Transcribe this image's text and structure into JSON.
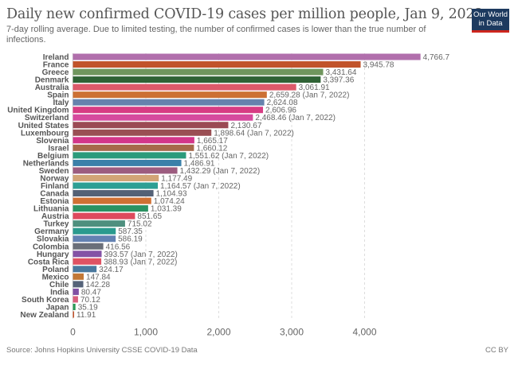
{
  "title": "Daily new confirmed COVID-19 cases per million people, Jan 9, 2022",
  "subtitle": "7-day rolling average. Due to limited testing, the number of confirmed cases is lower than the true number of infections.",
  "logo": {
    "line1": "Our World",
    "line2": "in Data"
  },
  "source": "Source: Johns Hopkins University CSSE COVID-19 Data",
  "license": "CC BY",
  "chart_data": {
    "type": "bar",
    "orientation": "horizontal",
    "title": "Daily new confirmed COVID-19 cases per million people, Jan 9, 2022",
    "xlabel": "",
    "ylabel": "",
    "xlim": [
      0,
      4766.7
    ],
    "x_ticks": [
      0,
      1000,
      2000,
      3000,
      4000
    ],
    "x_tick_labels": [
      "0",
      "1,000",
      "2,000",
      "3,000",
      "4,000"
    ],
    "grid": "vertical dashed",
    "categories": [
      "Ireland",
      "France",
      "Greece",
      "Denmark",
      "Australia",
      "Spain",
      "Italy",
      "United Kingdom",
      "Switzerland",
      "United States",
      "Luxembourg",
      "Slovenia",
      "Israel",
      "Belgium",
      "Netherlands",
      "Sweden",
      "Norway",
      "Finland",
      "Canada",
      "Estonia",
      "Lithuania",
      "Austria",
      "Turkey",
      "Germany",
      "Slovakia",
      "Colombia",
      "Hungary",
      "Costa Rica",
      "Poland",
      "Mexico",
      "Chile",
      "India",
      "South Korea",
      "Japan",
      "New Zealand"
    ],
    "values": [
      4766.7,
      3945.78,
      3431.64,
      3397.36,
      3061.91,
      2659.28,
      2624.08,
      2606.96,
      2468.46,
      2130.67,
      1898.64,
      1665.17,
      1660.12,
      1551.62,
      1486.91,
      1432.29,
      1177.49,
      1164.57,
      1104.93,
      1074.24,
      1031.39,
      851.65,
      715.02,
      587.35,
      586.19,
      416.56,
      393.57,
      388.93,
      324.17,
      147.84,
      142.28,
      80.47,
      70.12,
      35.19,
      11.91
    ],
    "labels": [
      "4,766.7",
      "3,945.78",
      "3,431.64",
      "3,397.36",
      "3,061.91",
      "2,659.28 (Jan 7, 2022)",
      "2,624.08",
      "2,606.96",
      "2,468.46 (Jan 7, 2022)",
      "2,130.67",
      "1,898.64 (Jan 7, 2022)",
      "1,665.17",
      "1,660.12",
      "1,551.62 (Jan 7, 2022)",
      "1,486.91",
      "1,432.29 (Jan 7, 2022)",
      "1,177.49",
      "1,164.57 (Jan 7, 2022)",
      "1,104.93",
      "1,074.24",
      "1,031.39",
      "851.65",
      "715.02",
      "587.35",
      "586.19",
      "416.56",
      "393.57 (Jan 7, 2022)",
      "388.93 (Jan 7, 2022)",
      "324.17",
      "147.84",
      "142.28",
      "80.47",
      "70.12",
      "35.19",
      "11.91"
    ],
    "colors": [
      "#b16fac",
      "#c1532b",
      "#70965e",
      "#2f6235",
      "#dd5a6a",
      "#cc7034",
      "#6682ad",
      "#d73c83",
      "#d64a9e",
      "#9b4a54",
      "#9a4f54",
      "#d3368a",
      "#a6694a",
      "#2b9b7b",
      "#3b80a9",
      "#9c5c7f",
      "#d2a476",
      "#2d9f94",
      "#546176",
      "#d07033",
      "#2b9262",
      "#de4a5d",
      "#4e8f7e",
      "#2a9a8e",
      "#6381b2",
      "#6a6f79",
      "#8452a6",
      "#df5363",
      "#4a799e",
      "#c27836",
      "#556379",
      "#8051a4",
      "#d9607d",
      "#2c9a57",
      "#c4532b"
    ]
  }
}
